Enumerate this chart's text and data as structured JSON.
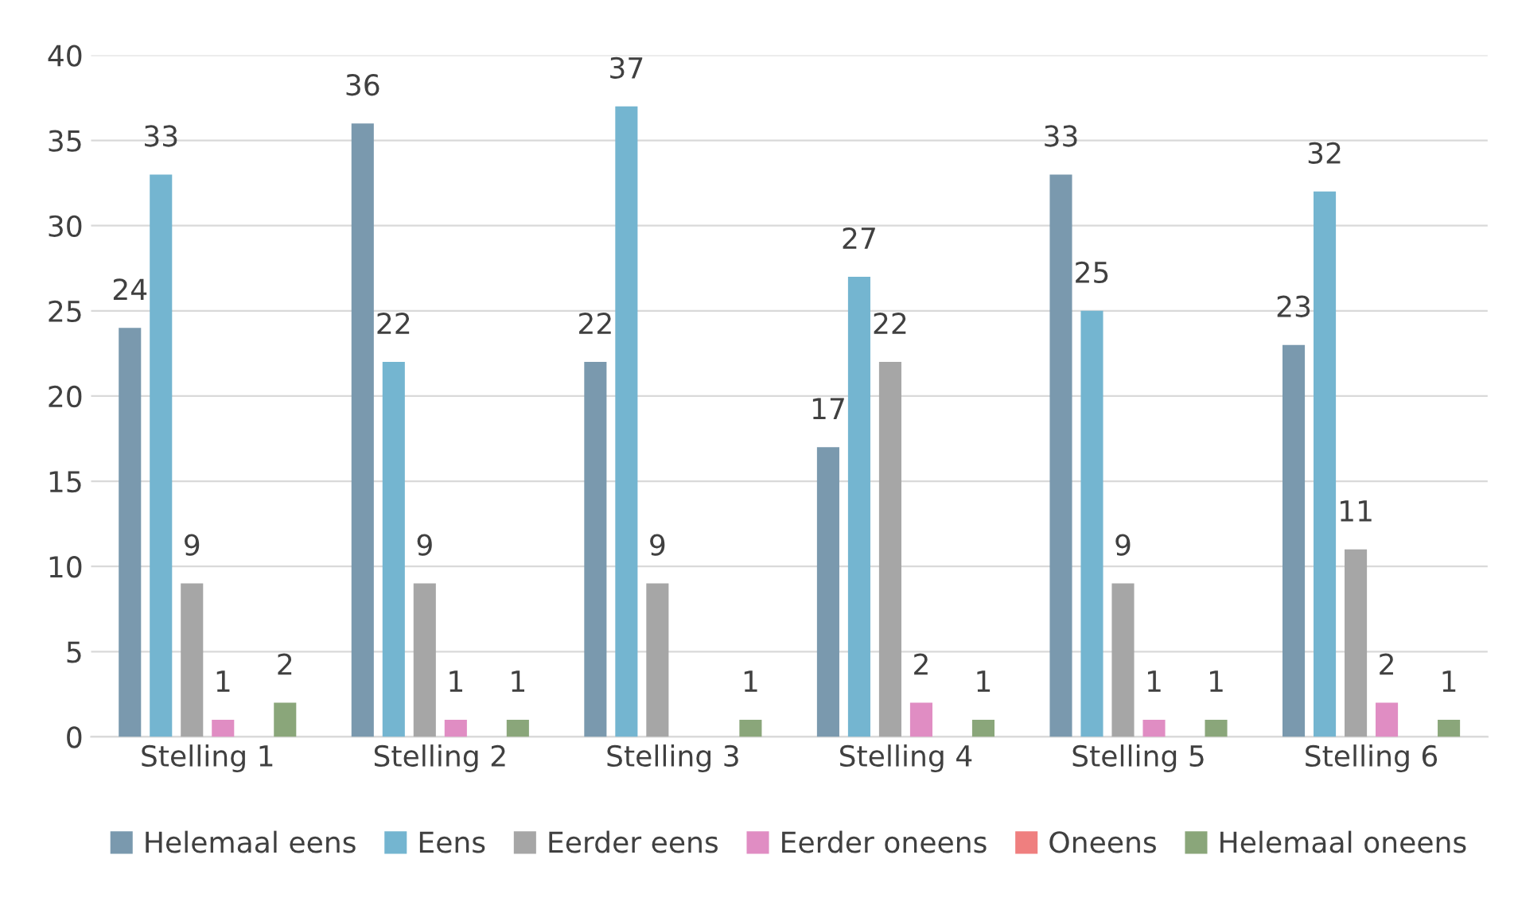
{
  "chart_data": {
    "type": "bar",
    "categories": [
      "Stelling 1",
      "Stelling 2",
      "Stelling 3",
      "Stelling 4",
      "Stelling 5",
      "Stelling 6"
    ],
    "series": [
      {
        "name": "Helemaal eens",
        "color": "#7a99ae",
        "values": [
          24,
          36,
          22,
          17,
          33,
          23
        ]
      },
      {
        "name": "Eens",
        "color": "#74b5d0",
        "values": [
          33,
          22,
          37,
          27,
          25,
          32
        ]
      },
      {
        "name": "Eerder eens",
        "color": "#a6a6a6",
        "values": [
          9,
          9,
          9,
          22,
          9,
          11
        ]
      },
      {
        "name": "Eerder oneens",
        "color": "#e08dc3",
        "values": [
          1,
          1,
          null,
          2,
          1,
          2
        ]
      },
      {
        "name": "Oneens",
        "color": "#ef7f7f",
        "values": [
          null,
          null,
          null,
          null,
          null,
          null
        ]
      },
      {
        "name": "Helemaal oneens",
        "color": "#8aa67a",
        "values": [
          2,
          1,
          1,
          1,
          1,
          1
        ]
      }
    ],
    "ylim": [
      0,
      40
    ],
    "yticks": [
      0,
      5,
      10,
      15,
      20,
      25,
      30,
      35,
      40
    ],
    "grid": "y",
    "legend": "bottom",
    "data_labels": true
  }
}
